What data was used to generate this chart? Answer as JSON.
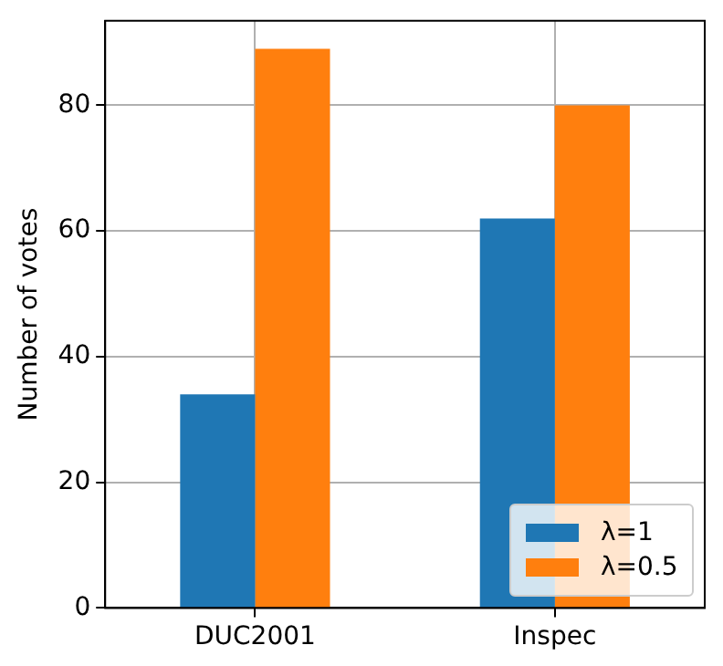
{
  "chart_data": {
    "type": "bar",
    "ylabel": "Number of votes",
    "categories": [
      "DUC2001",
      "Inspec"
    ],
    "series": [
      {
        "name": "λ=1",
        "color": "#1f77b4",
        "values": [
          34,
          62
        ]
      },
      {
        "name": "λ=0.5",
        "color": "#ff7f0e",
        "values": [
          89,
          80
        ]
      }
    ],
    "ylim": [
      0,
      93.45
    ],
    "yticks": [
      0,
      20,
      40,
      60,
      80
    ],
    "grid": true,
    "legend": "bottom right"
  }
}
